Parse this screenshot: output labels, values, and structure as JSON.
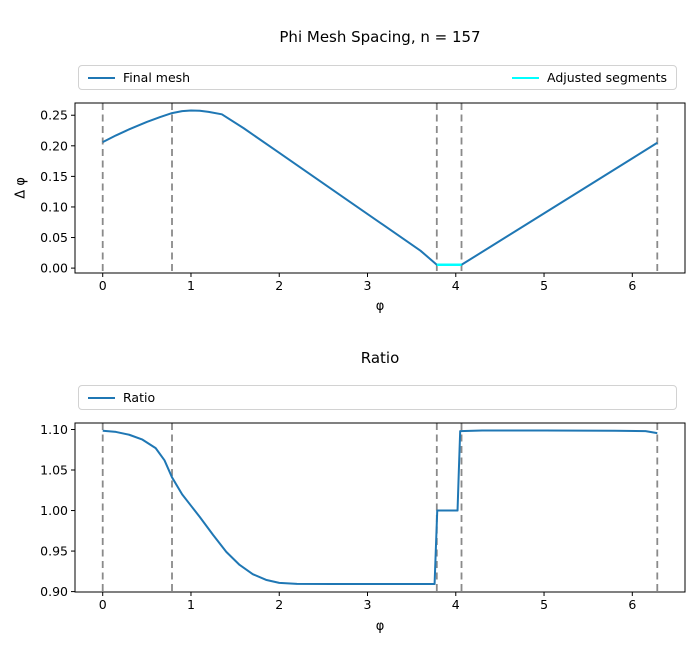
{
  "figure": {
    "background": "#ffffff"
  },
  "colors": {
    "line_blue": "#1f77b4",
    "line_cyan": "#00ffff",
    "vline_gray": "#8a8a8a",
    "frame": "#000000",
    "legend_border": "#d2d2d2"
  },
  "chart_data": [
    {
      "type": "line",
      "title": "Phi Mesh Spacing, n = 157",
      "xlabel": "φ",
      "ylabel": "Δ φ",
      "xlim": [
        -0.314,
        6.597
      ],
      "ylim": [
        -0.008,
        0.27
      ],
      "xticks": [
        0,
        1,
        2,
        3,
        4,
        5,
        6
      ],
      "xtick_labels": [
        "0",
        "1",
        "2",
        "3",
        "4",
        "5",
        "6"
      ],
      "yticks": [
        0.0,
        0.05,
        0.1,
        0.15,
        0.2,
        0.25
      ],
      "ytick_labels": [
        "0.00",
        "0.05",
        "0.10",
        "0.15",
        "0.20",
        "0.25"
      ],
      "grid": false,
      "legend_position": "top-expand",
      "legend": [
        {
          "label": "Final mesh",
          "color": "#1f77b4"
        },
        {
          "label": "Adjusted segments",
          "color": "#00ffff"
        }
      ],
      "vlines": {
        "x": [
          0,
          0.785,
          3.785,
          4.065,
          6.283
        ],
        "color": "#8a8a8a",
        "style": "dashed"
      },
      "series": [
        {
          "name": "Final mesh",
          "color": "#1f77b4",
          "width": 2,
          "x": [
            0,
            0.15,
            0.3,
            0.5,
            0.65,
            0.785,
            0.9,
            1.0,
            1.1,
            1.2,
            1.35,
            1.6,
            2.0,
            2.4,
            2.8,
            3.2,
            3.6,
            3.785,
            3.9,
            4.065,
            4.4,
            4.8,
            5.2,
            5.6,
            6.0,
            6.283
          ],
          "y": [
            0.206,
            0.217,
            0.227,
            0.239,
            0.247,
            0.2535,
            0.2567,
            0.2578,
            0.2573,
            0.2555,
            0.2515,
            0.2285,
            0.1885,
            0.1485,
            0.1085,
            0.0685,
            0.0285,
            0.0055,
            0.0055,
            0.0055,
            0.0355,
            0.0715,
            0.1075,
            0.1435,
            0.1795,
            0.205
          ]
        },
        {
          "name": "Adjusted segments",
          "color": "#00ffff",
          "width": 2.5,
          "x": [
            3.785,
            4.065
          ],
          "y": [
            0.0055,
            0.0055
          ]
        }
      ]
    },
    {
      "type": "line",
      "title": "Ratio",
      "xlabel": "φ",
      "ylabel": "",
      "xlim": [
        -0.314,
        6.597
      ],
      "ylim": [
        0.8995,
        1.108
      ],
      "xticks": [
        0,
        1,
        2,
        3,
        4,
        5,
        6
      ],
      "xtick_labels": [
        "0",
        "1",
        "2",
        "3",
        "4",
        "5",
        "6"
      ],
      "yticks": [
        0.9,
        0.95,
        1.0,
        1.05,
        1.1
      ],
      "ytick_labels": [
        "0.90",
        "0.95",
        "1.00",
        "1.05",
        "1.10"
      ],
      "grid": false,
      "legend_position": "top-expand",
      "legend": [
        {
          "label": "Ratio",
          "color": "#1f77b4"
        }
      ],
      "vlines": {
        "x": [
          0,
          0.785,
          3.785,
          4.065,
          6.283
        ],
        "color": "#8a8a8a",
        "style": "dashed"
      },
      "series": [
        {
          "name": "Ratio",
          "color": "#1f77b4",
          "width": 2,
          "x": [
            0,
            0.15,
            0.3,
            0.45,
            0.6,
            0.7,
            0.785,
            0.9,
            1.0,
            1.1,
            1.25,
            1.4,
            1.55,
            1.7,
            1.85,
            2.0,
            2.2,
            2.6,
            3.0,
            3.4,
            3.76,
            3.775,
            3.79,
            4.02,
            4.035,
            4.05,
            4.3,
            5.0,
            5.8,
            6.15,
            6.283
          ],
          "y": [
            1.0985,
            1.097,
            1.0935,
            1.0875,
            1.077,
            1.062,
            1.041,
            1.02,
            1.006,
            0.992,
            0.97,
            0.949,
            0.933,
            0.9215,
            0.9145,
            0.9108,
            0.9095,
            0.9093,
            0.9093,
            0.9093,
            0.9093,
            0.955,
            1.0,
            1.0,
            1.05,
            1.098,
            1.0988,
            1.0988,
            1.0985,
            1.098,
            1.0955
          ]
        }
      ]
    }
  ]
}
